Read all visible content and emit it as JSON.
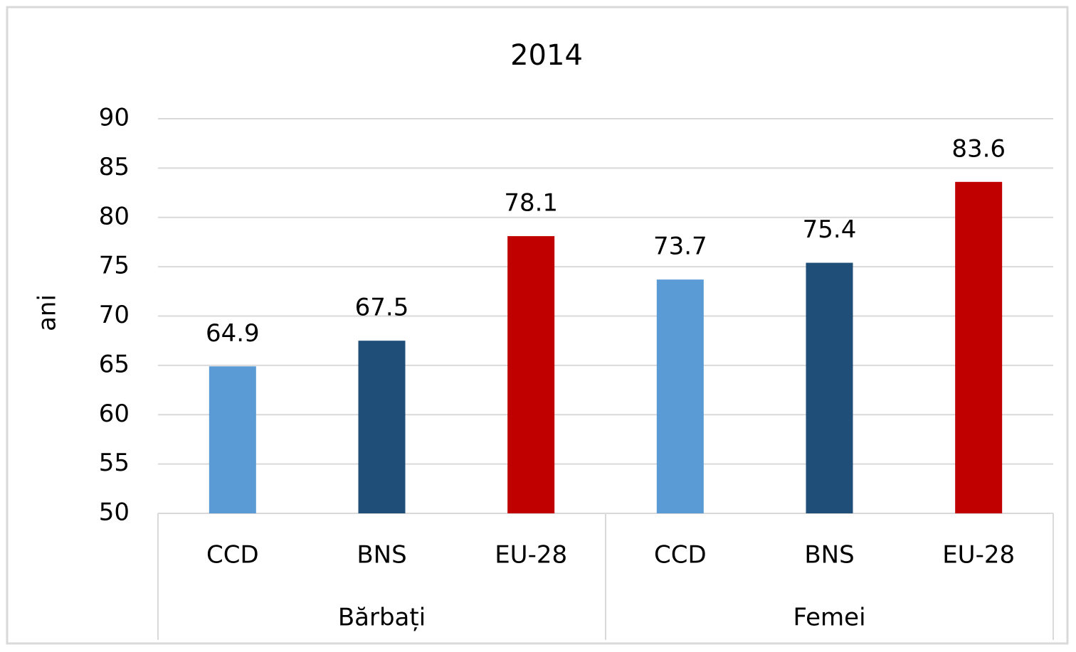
{
  "chart_data": {
    "type": "bar",
    "title": "2014",
    "y_label": "ani",
    "groups": [
      {
        "name": "Bărbați",
        "categories": [
          "CCD",
          "BNS",
          "EU-28"
        ],
        "values": [
          64.9,
          67.5,
          78.1
        ],
        "colors": [
          "#5b9bd5",
          "#1f4e79",
          "#c00000"
        ]
      },
      {
        "name": "Femei",
        "categories": [
          "CCD",
          "BNS",
          "EU-28"
        ],
        "values": [
          73.7,
          75.4,
          83.6
        ],
        "colors": [
          "#5b9bd5",
          "#1f4e79",
          "#c00000"
        ]
      }
    ],
    "ylim": [
      50,
      90
    ],
    "yticks": [
      50,
      55,
      60,
      65,
      70,
      75,
      80,
      85,
      90
    ],
    "grid": true
  }
}
